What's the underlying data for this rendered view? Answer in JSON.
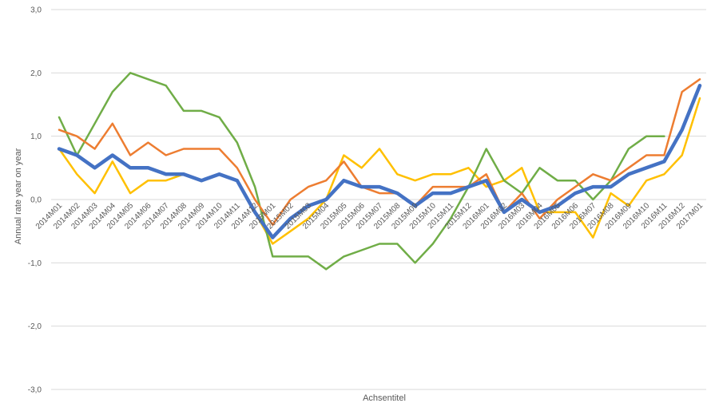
{
  "chart_data": {
    "type": "line",
    "xlabel": "Achsentitel",
    "ylabel": "Annual rate year on year",
    "ylim": [
      -3,
      3
    ],
    "yticks": [
      "3,0",
      "2,0",
      "1,0",
      "0,0",
      "-1,0",
      "-2,0",
      "-3,0"
    ],
    "ytick_values": [
      3,
      2,
      1,
      0,
      -1,
      -2,
      -3
    ],
    "grid": true,
    "legend": "none",
    "categories": [
      "2014M01",
      "2014M02",
      "2014M03",
      "2014M04",
      "2014M05",
      "2014M06",
      "2014M07",
      "2014M08",
      "2014M09",
      "2014M10",
      "2014M11",
      "2014M12",
      "2015M01",
      "2015M02",
      "2015M03",
      "2015M04",
      "2015M05",
      "2015M06",
      "2015M07",
      "2015M08",
      "2015M09",
      "2015M10",
      "2015M11",
      "2015M12",
      "2016M01",
      "2016M02",
      "2016M03",
      "2016M04",
      "2016M05",
      "2016M06",
      "2016M07",
      "2016M08",
      "2016M09",
      "2016M10",
      "2016M11",
      "2016M12",
      "2017M01"
    ],
    "series": [
      {
        "color": "#4472c4",
        "width": 4.5,
        "values": [
          0.8,
          0.7,
          0.5,
          0.7,
          0.5,
          0.5,
          0.4,
          0.4,
          0.3,
          0.4,
          0.3,
          -0.2,
          -0.6,
          -0.3,
          -0.1,
          0.0,
          0.3,
          0.2,
          0.2,
          0.1,
          -0.1,
          0.1,
          0.1,
          0.2,
          0.3,
          -0.2,
          0.0,
          -0.2,
          -0.1,
          0.1,
          0.2,
          0.2,
          0.4,
          0.5,
          0.6,
          1.1,
          1.8
        ]
      },
      {
        "color": "#ed7d31",
        "width": 2.5,
        "values": [
          1.1,
          1.0,
          0.8,
          1.2,
          0.7,
          0.9,
          0.7,
          0.8,
          0.8,
          0.8,
          0.5,
          0.0,
          -0.4,
          0.0,
          0.2,
          0.3,
          0.6,
          0.2,
          0.1,
          0.1,
          -0.1,
          0.2,
          0.2,
          0.2,
          0.4,
          -0.2,
          0.1,
          -0.3,
          0.0,
          0.2,
          0.4,
          0.3,
          0.5,
          0.7,
          0.7,
          1.7,
          1.9
        ]
      },
      {
        "color": "#ffc000",
        "width": 2.5,
        "values": [
          0.8,
          0.4,
          0.1,
          0.6,
          0.1,
          0.3,
          0.3,
          0.4,
          0.3,
          0.4,
          0.3,
          -0.2,
          -0.7,
          -0.5,
          -0.3,
          0.0,
          0.7,
          0.5,
          0.8,
          0.4,
          0.3,
          0.4,
          0.4,
          0.5,
          0.2,
          0.3,
          0.5,
          -0.2,
          -0.2,
          -0.2,
          -0.6,
          0.1,
          -0.1,
          0.3,
          0.4,
          0.7,
          1.6
        ]
      },
      {
        "color": "#70ad47",
        "width": 2.5,
        "values": [
          1.3,
          0.7,
          1.2,
          1.7,
          2.0,
          1.9,
          1.8,
          1.4,
          1.4,
          1.3,
          0.9,
          0.2,
          -0.9,
          -0.9,
          -0.9,
          -1.1,
          -0.9,
          -0.8,
          -0.7,
          -0.7,
          -1.0,
          -0.7,
          -0.3,
          0.2,
          0.8,
          0.3,
          0.1,
          0.5,
          0.3,
          0.3,
          0.0,
          0.3,
          0.8,
          1.0,
          1.0,
          null,
          null
        ]
      }
    ]
  }
}
